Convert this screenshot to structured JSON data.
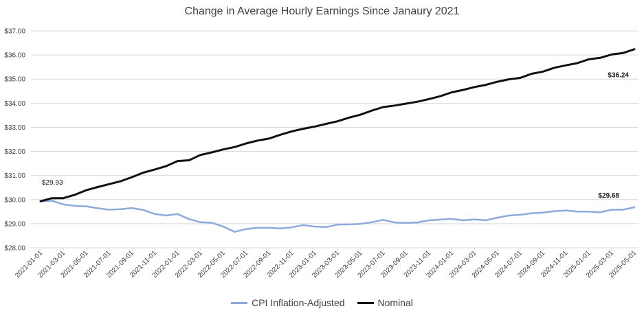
{
  "chart_data": {
    "type": "line",
    "title": "Change in Average Hourly Earnings Since Janaury 2021",
    "ylim": [
      28,
      37
    ],
    "yticks": [
      "$28.00",
      "$29.00",
      "$30.00",
      "$31.00",
      "$32.00",
      "$33.00",
      "$34.00",
      "$35.00",
      "$36.00",
      "$37.00"
    ],
    "grid": true,
    "legend_position": "bottom",
    "x_tick_labels": [
      "2021-01-01",
      "2021-03-01",
      "2021-05-01",
      "2021-07-01",
      "2021-09-01",
      "2021-11-01",
      "2022-01-01",
      "2022-03-01",
      "2022-05-01",
      "2022-07-01",
      "2022-09-01",
      "2022-11-01",
      "2023-01-01",
      "2023-03-01",
      "2023-05-01",
      "2023-07-01",
      "2023-09-01",
      "2023-11-01",
      "2024-01-01",
      "2024-03-01",
      "2024-05-01",
      "2024-07-01",
      "2024-09-01",
      "2024-11-01",
      "2025-01-01",
      "2025-03-01",
      "2025-05-01"
    ],
    "series": [
      {
        "name": "CPI Inflation-Adjusted",
        "color": "#8ea9db",
        "values": [
          29.93,
          29.95,
          29.8,
          29.74,
          29.72,
          29.64,
          29.58,
          29.6,
          29.65,
          29.57,
          29.4,
          29.34,
          29.4,
          29.19,
          29.06,
          29.04,
          28.88,
          28.66,
          28.78,
          28.83,
          28.83,
          28.8,
          28.85,
          28.94,
          28.88,
          28.86,
          28.96,
          28.97,
          28.99,
          29.06,
          29.16,
          29.05,
          29.03,
          29.05,
          29.14,
          29.17,
          29.2,
          29.14,
          29.18,
          29.14,
          29.25,
          29.34,
          29.37,
          29.43,
          29.46,
          29.52,
          29.55,
          29.5,
          29.5,
          29.47,
          29.58,
          29.58,
          29.68
        ]
      },
      {
        "name": "Nominal",
        "color": "#111111",
        "values": [
          29.93,
          30.06,
          30.06,
          30.2,
          30.39,
          30.52,
          30.64,
          30.76,
          30.93,
          31.12,
          31.25,
          31.39,
          31.6,
          31.63,
          31.85,
          31.96,
          32.08,
          32.18,
          32.33,
          32.45,
          32.53,
          32.69,
          32.83,
          32.94,
          33.03,
          33.14,
          33.25,
          33.4,
          33.52,
          33.69,
          33.84,
          33.9,
          33.98,
          34.06,
          34.17,
          34.29,
          34.45,
          34.55,
          34.67,
          34.76,
          34.89,
          34.99,
          35.05,
          35.22,
          35.31,
          35.47,
          35.57,
          35.66,
          35.82,
          35.88,
          36.02,
          36.08,
          36.24
        ]
      }
    ],
    "annotations": [
      {
        "text": "$29.93",
        "series": 1,
        "index": 0,
        "bold": false
      },
      {
        "text": "$36.24",
        "series": 1,
        "index": 52,
        "bold": true
      },
      {
        "text": "$29.68",
        "series": 0,
        "index": 52,
        "bold": true
      }
    ]
  }
}
